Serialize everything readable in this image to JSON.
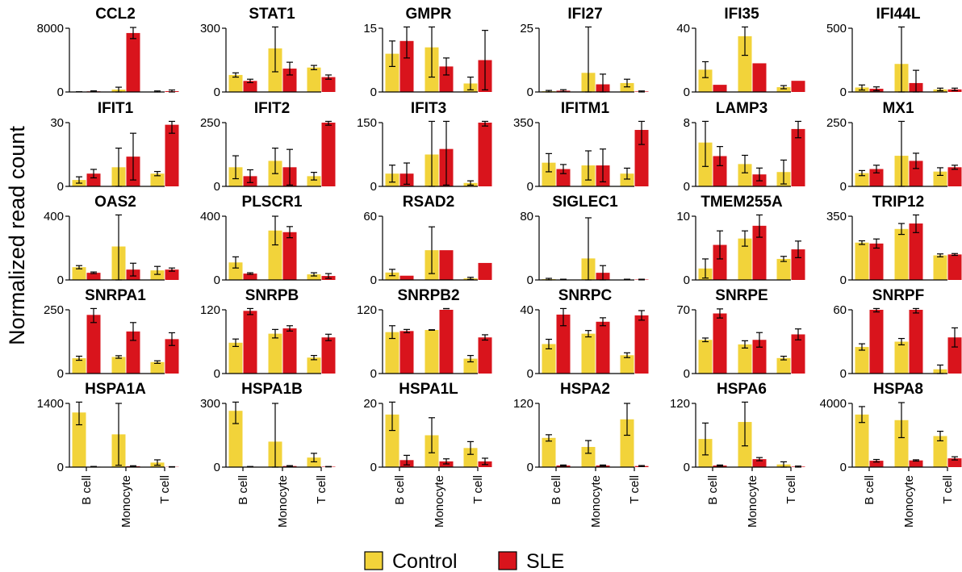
{
  "figure": {
    "ylabel": "Normalized read count",
    "categories": [
      "B cell",
      "Monocyte",
      "T cell"
    ],
    "colors": {
      "Control": "#f2d33a",
      "SLE": "#d9141c"
    },
    "legend": [
      {
        "name": "Control",
        "color": "#f2d33a"
      },
      {
        "name": "SLE",
        "color": "#d9141c"
      }
    ]
  },
  "chart_data": [
    {
      "type": "bar",
      "title": "CCL2",
      "ymax": 8000,
      "yticks": [
        0,
        8000
      ],
      "categories": [
        "B cell",
        "Monocyte",
        "T cell"
      ],
      "series": [
        {
          "name": "Control",
          "values": [
            20,
            300,
            50
          ],
          "err": [
            10,
            300,
            80
          ]
        },
        {
          "name": "SLE",
          "values": [
            80,
            7400,
            100
          ],
          "err": [
            60,
            700,
            150
          ]
        }
      ]
    },
    {
      "type": "bar",
      "title": "STAT1",
      "ymax": 300,
      "yticks": [
        0,
        300
      ],
      "categories": [
        "B cell",
        "Monocyte",
        "T cell"
      ],
      "series": [
        {
          "name": "Control",
          "values": [
            80,
            205,
            115
          ],
          "err": [
            10,
            110,
            10
          ]
        },
        {
          "name": "SLE",
          "values": [
            52,
            110,
            70
          ],
          "err": [
            8,
            30,
            10
          ]
        }
      ]
    },
    {
      "type": "bar",
      "title": "GMPR",
      "ymax": 15,
      "yticks": [
        0,
        15
      ],
      "categories": [
        "B cell",
        "Monocyte",
        "T cell"
      ],
      "series": [
        {
          "name": "Control",
          "values": [
            9,
            10.5,
            2
          ],
          "err": [
            3,
            7,
            1.5
          ]
        },
        {
          "name": "SLE",
          "values": [
            12,
            6,
            7.5
          ],
          "err": [
            4,
            2,
            7
          ]
        }
      ]
    },
    {
      "type": "bar",
      "title": "IFI27",
      "ymax": 25,
      "yticks": [
        0,
        25
      ],
      "categories": [
        "B cell",
        "Monocyte",
        "T cell"
      ],
      "series": [
        {
          "name": "Control",
          "values": [
            0.3,
            7.5,
            3.5
          ],
          "err": [
            0.3,
            21,
            1.5
          ]
        },
        {
          "name": "SLE",
          "values": [
            0.5,
            3,
            0.2
          ],
          "err": [
            0.4,
            4,
            0.2
          ]
        }
      ]
    },
    {
      "type": "bar",
      "title": "IFI35",
      "ymax": 40,
      "yticks": [
        0,
        40
      ],
      "categories": [
        "B cell",
        "Monocyte",
        "T cell"
      ],
      "series": [
        {
          "name": "Control",
          "values": [
            14,
            35,
            3
          ],
          "err": [
            5,
            12,
            1
          ]
        },
        {
          "name": "SLE",
          "values": [
            4.5,
            18,
            7
          ]
        },
        {
          "name": "_",
          "values": [
            0,
            0,
            0
          ]
        }
      ]
    },
    {
      "type": "bar",
      "title": "IFI44L",
      "ymax": 500,
      "yticks": [
        0,
        500
      ],
      "categories": [
        "B cell",
        "Monocyte",
        "T cell"
      ],
      "series": [
        {
          "name": "Control",
          "values": [
            35,
            220,
            20
          ],
          "err": [
            20,
            330,
            10
          ]
        },
        {
          "name": "SLE",
          "values": [
            25,
            70,
            20
          ],
          "err": [
            15,
            100,
            10
          ]
        }
      ]
    },
    {
      "type": "bar",
      "title": "IFIT1",
      "ymax": 30,
      "yticks": [
        0,
        30
      ],
      "categories": [
        "B cell",
        "Monocyte",
        "T cell"
      ],
      "series": [
        {
          "name": "Control",
          "values": [
            3,
            9,
            6
          ],
          "err": [
            1.5,
            9,
            1
          ]
        },
        {
          "name": "SLE",
          "values": [
            6,
            14,
            29
          ],
          "err": [
            2,
            11,
            4
          ]
        }
      ]
    },
    {
      "type": "bar",
      "title": "IFIT2",
      "ymax": 250,
      "yticks": [
        0,
        250
      ],
      "categories": [
        "B cell",
        "Monocyte",
        "T cell"
      ],
      "series": [
        {
          "name": "Control",
          "values": [
            75,
            100,
            40
          ],
          "err": [
            45,
            50,
            15
          ]
        },
        {
          "name": "SLE",
          "values": [
            40,
            75,
            250
          ],
          "err": [
            25,
            70,
            10
          ]
        }
      ]
    },
    {
      "type": "bar",
      "title": "IFIT3",
      "ymax": 150,
      "yticks": [
        0,
        150
      ],
      "categories": [
        "B cell",
        "Monocyte",
        "T cell"
      ],
      "series": [
        {
          "name": "Control",
          "values": [
            30,
            75,
            8
          ],
          "err": [
            20,
            90,
            5
          ]
        },
        {
          "name": "SLE",
          "values": [
            30,
            88,
            157
          ],
          "err": [
            25,
            85,
            15
          ]
        }
      ]
    },
    {
      "type": "bar",
      "title": "IFITM1",
      "ymax": 350,
      "yticks": [
        0,
        350
      ],
      "categories": [
        "B cell",
        "Monocyte",
        "T cell"
      ],
      "series": [
        {
          "name": "Control",
          "values": [
            130,
            115,
            70
          ],
          "err": [
            50,
            80,
            30
          ]
        },
        {
          "name": "SLE",
          "values": [
            95,
            115,
            310
          ],
          "err": [
            25,
            90,
            80
          ]
        }
      ]
    },
    {
      "type": "bar",
      "title": "LAMP3",
      "ymax": 8,
      "yticks": [
        0,
        8
      ],
      "categories": [
        "B cell",
        "Monocyte",
        "T cell"
      ],
      "series": [
        {
          "name": "Control",
          "values": [
            5.5,
            2.8,
            1.8
          ],
          "err": [
            3,
            1.1,
            1.5
          ]
        },
        {
          "name": "SLE",
          "values": [
            3.8,
            1.5,
            7.2
          ],
          "err": [
            1.2,
            0.8,
            1.1
          ]
        }
      ]
    },
    {
      "type": "bar",
      "title": "MX1",
      "ymax": 250,
      "yticks": [
        0,
        250
      ],
      "categories": [
        "B cell",
        "Monocyte",
        "T cell"
      ],
      "series": [
        {
          "name": "Control",
          "values": [
            52,
            120,
            58
          ],
          "err": [
            10,
            155,
            15
          ]
        },
        {
          "name": "SLE",
          "values": [
            68,
            100,
            75
          ],
          "err": [
            15,
            30,
            8
          ]
        }
      ]
    },
    {
      "type": "bar",
      "title": "OAS2",
      "ymax": 400,
      "yticks": [
        0,
        400
      ],
      "categories": [
        "B cell",
        "Monocyte",
        "T cell"
      ],
      "series": [
        {
          "name": "Control",
          "values": [
            80,
            210,
            60
          ],
          "err": [
            10,
            210,
            25
          ]
        },
        {
          "name": "SLE",
          "values": [
            45,
            65,
            65
          ],
          "err": [
            5,
            40,
            10
          ]
        }
      ]
    },
    {
      "type": "bar",
      "title": "PLSCR1",
      "ymax": 400,
      "yticks": [
        0,
        400
      ],
      "categories": [
        "B cell",
        "Monocyte",
        "T cell"
      ],
      "series": [
        {
          "name": "Control",
          "values": [
            110,
            310,
            35
          ],
          "err": [
            35,
            90,
            10
          ]
        },
        {
          "name": "SLE",
          "values": [
            40,
            300,
            25
          ],
          "err": [
            5,
            35,
            15
          ]
        }
      ]
    },
    {
      "type": "bar",
      "title": "RSAD2",
      "ymax": 60,
      "yticks": [
        0,
        60
      ],
      "categories": [
        "B cell",
        "Monocyte",
        "T cell"
      ],
      "series": [
        {
          "name": "Control",
          "values": [
            7,
            28,
            1.5
          ],
          "err": [
            3,
            22,
            1
          ]
        },
        {
          "name": "SLE",
          "values": [
            4,
            28,
            16
          ]
        }
      ]
    },
    {
      "type": "bar",
      "title": "SIGLEC1",
      "ymax": 80,
      "yticks": [
        0,
        80
      ],
      "categories": [
        "B cell",
        "Monocyte",
        "T cell"
      ],
      "series": [
        {
          "name": "Control",
          "values": [
            1,
            27,
            0.5
          ],
          "err": [
            1,
            51,
            0.4
          ]
        },
        {
          "name": "SLE",
          "values": [
            0.5,
            9,
            0.5
          ],
          "err": [
            0.4,
            9,
            0.4
          ]
        }
      ]
    },
    {
      "type": "bar",
      "title": "TMEM255A",
      "ymax": 10,
      "yticks": [
        0,
        10
      ],
      "categories": [
        "B cell",
        "Monocyte",
        "T cell"
      ],
      "series": [
        {
          "name": "Control",
          "values": [
            1.8,
            6.5,
            3.3
          ],
          "err": [
            1.5,
            1.2,
            0.4
          ]
        },
        {
          "name": "SLE",
          "values": [
            5.5,
            8.5,
            4.8
          ],
          "err": [
            2.2,
            1.8,
            1.3
          ]
        }
      ]
    },
    {
      "type": "bar",
      "title": "TRIP12",
      "ymax": 350,
      "yticks": [
        0,
        350
      ],
      "categories": [
        "B cell",
        "Monocyte",
        "T cell"
      ],
      "series": [
        {
          "name": "Control",
          "values": [
            205,
            280,
            135
          ],
          "err": [
            10,
            30,
            8
          ]
        },
        {
          "name": "SLE",
          "values": [
            200,
            310,
            140
          ],
          "err": [
            25,
            50,
            5
          ]
        }
      ]
    },
    {
      "type": "bar",
      "title": "SNRPA1",
      "ymax": 250,
      "yticks": [
        0,
        250
      ],
      "categories": [
        "B cell",
        "Monocyte",
        "T cell"
      ],
      "series": [
        {
          "name": "Control",
          "values": [
            60,
            65,
            45
          ],
          "err": [
            8,
            5,
            5
          ]
        },
        {
          "name": "SLE",
          "values": [
            230,
            165,
            135
          ],
          "err": [
            30,
            35,
            25
          ]
        }
      ]
    },
    {
      "type": "bar",
      "title": "SNRPB",
      "ymax": 120,
      "yticks": [
        0,
        120
      ],
      "categories": [
        "B cell",
        "Monocyte",
        "T cell"
      ],
      "series": [
        {
          "name": "Control",
          "values": [
            58,
            75,
            30
          ],
          "err": [
            7,
            8,
            4
          ]
        },
        {
          "name": "SLE",
          "values": [
            118,
            85,
            68
          ],
          "err": [
            7,
            5,
            6
          ]
        }
      ]
    },
    {
      "type": "bar",
      "title": "SNRPB2",
      "ymax": 120,
      "yticks": [
        0,
        120
      ],
      "categories": [
        "B cell",
        "Monocyte",
        "T cell"
      ],
      "series": [
        {
          "name": "Control",
          "values": [
            78,
            82,
            28
          ],
          "err": [
            12,
            0.5,
            6
          ]
        },
        {
          "name": "SLE",
          "values": [
            80,
            125,
            68
          ],
          "err": [
            3,
            3,
            5
          ]
        }
      ]
    },
    {
      "type": "bar",
      "title": "SNRPC",
      "ymax": 40,
      "yticks": [
        0,
        40
      ],
      "categories": [
        "B cell",
        "Monocyte",
        "T cell"
      ],
      "series": [
        {
          "name": "Control",
          "values": [
            18.5,
            25,
            11.5
          ],
          "err": [
            3,
            2,
            1.5
          ]
        },
        {
          "name": "SLE",
          "values": [
            37,
            32.5,
            36.5
          ],
          "err": [
            7,
            2.5,
            3
          ]
        }
      ]
    },
    {
      "type": "bar",
      "title": "SNRPE",
      "ymax": 70,
      "yticks": [
        0,
        70
      ],
      "categories": [
        "B cell",
        "Monocyte",
        "T cell"
      ],
      "series": [
        {
          "name": "Control",
          "values": [
            37,
            32,
            17
          ],
          "err": [
            2,
            4,
            2
          ]
        },
        {
          "name": "SLE",
          "values": [
            66,
            37,
            43
          ],
          "err": [
            5,
            8,
            6
          ]
        }
      ]
    },
    {
      "type": "bar",
      "title": "SNRPF",
      "ymax": 60,
      "yticks": [
        0,
        60
      ],
      "categories": [
        "B cell",
        "Monocyte",
        "T cell"
      ],
      "series": [
        {
          "name": "Control",
          "values": [
            25,
            30,
            4
          ],
          "err": [
            3,
            3,
            4
          ]
        },
        {
          "name": "SLE",
          "values": [
            62,
            60,
            34
          ],
          "err": [
            4,
            3,
            9
          ]
        }
      ]
    },
    {
      "type": "bar",
      "title": "HSPA1A",
      "ymax": 1400,
      "yticks": [
        0,
        1400
      ],
      "categories": [
        "B cell",
        "Monocyte",
        "T cell"
      ],
      "series": [
        {
          "name": "Control",
          "values": [
            1200,
            720,
            100
          ],
          "err": [
            270,
            680,
            60
          ]
        },
        {
          "name": "SLE",
          "values": [
            10,
            20,
            5
          ],
          "err": [
            5,
            10,
            5
          ]
        }
      ]
    },
    {
      "type": "bar",
      "title": "HSPA1B",
      "ymax": 300,
      "yticks": [
        0,
        300
      ],
      "categories": [
        "B cell",
        "Monocyte",
        "T cell"
      ],
      "series": [
        {
          "name": "Control",
          "values": [
            265,
            120,
            45
          ],
          "err": [
            60,
            180,
            20
          ]
        },
        {
          "name": "SLE",
          "values": [
            2,
            5,
            2
          ],
          "err": [
            1,
            2,
            1
          ]
        }
      ]
    },
    {
      "type": "bar",
      "title": "HSPA1L",
      "ymax": 20,
      "yticks": [
        0,
        20
      ],
      "categories": [
        "B cell",
        "Monocyte",
        "T cell"
      ],
      "series": [
        {
          "name": "Control",
          "values": [
            16.5,
            10,
            6
          ],
          "err": [
            5,
            5.5,
            2
          ]
        },
        {
          "name": "SLE",
          "values": [
            2.2,
            1.8,
            1.8
          ],
          "err": [
            1.5,
            0.8,
            1
          ]
        }
      ]
    },
    {
      "type": "bar",
      "title": "HSPA2",
      "ymax": 120,
      "yticks": [
        0,
        120
      ],
      "categories": [
        "B cell",
        "Monocyte",
        "T cell"
      ],
      "series": [
        {
          "name": "Control",
          "values": [
            55,
            38,
            90
          ],
          "err": [
            6,
            12,
            30
          ]
        },
        {
          "name": "SLE",
          "values": [
            3,
            3,
            2
          ],
          "err": [
            1,
            1,
            1
          ]
        }
      ]
    },
    {
      "type": "bar",
      "title": "HSPA6",
      "ymax": 120,
      "yticks": [
        0,
        120
      ],
      "categories": [
        "B cell",
        "Monocyte",
        "T cell"
      ],
      "series": [
        {
          "name": "Control",
          "values": [
            53,
            85,
            5
          ],
          "err": [
            30,
            45,
            5
          ]
        },
        {
          "name": "SLE",
          "values": [
            3,
            15,
            1
          ],
          "err": [
            1,
            3,
            1
          ]
        }
      ]
    },
    {
      "type": "bar",
      "title": "HSPA8",
      "ymax": 4000,
      "yticks": [
        0,
        4000
      ],
      "categories": [
        "B cell",
        "Monocyte",
        "T cell"
      ],
      "series": [
        {
          "name": "Control",
          "values": [
            3300,
            2950,
            1950
          ],
          "err": [
            500,
            1100,
            300
          ]
        },
        {
          "name": "SLE",
          "values": [
            400,
            420,
            550
          ],
          "err": [
            80,
            40,
            100
          ]
        }
      ]
    }
  ]
}
